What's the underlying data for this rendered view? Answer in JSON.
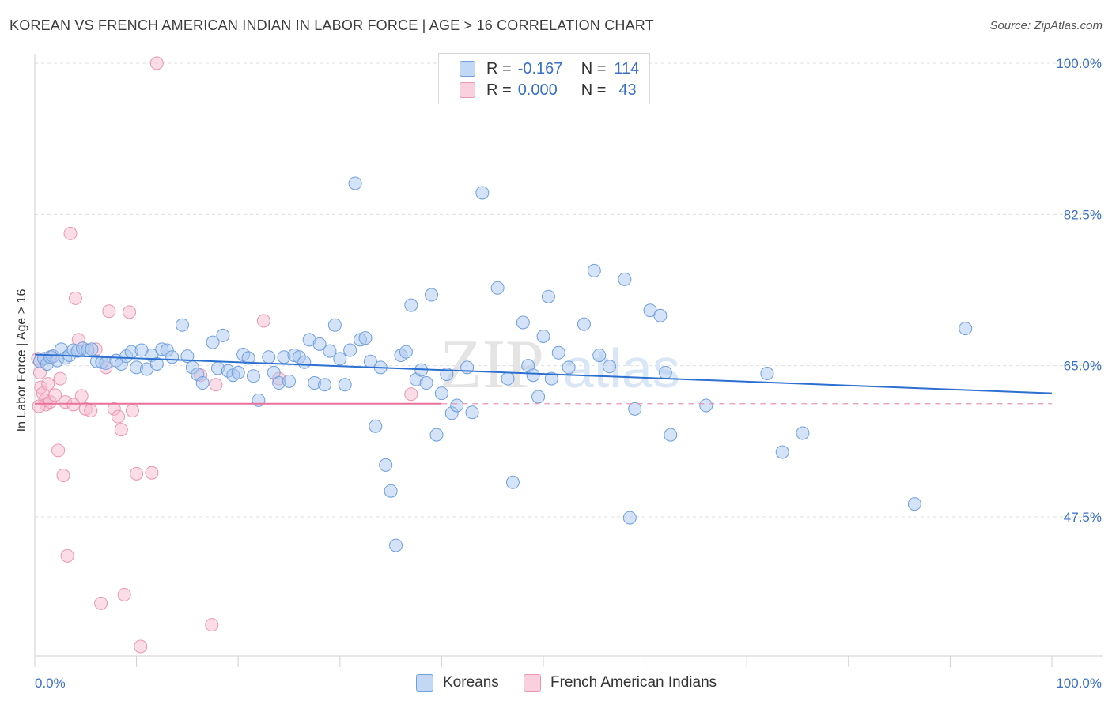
{
  "header": {
    "title": "KOREAN VS FRENCH AMERICAN INDIAN IN LABOR FORCE | AGE > 16 CORRELATION CHART",
    "source": "Source: ZipAtlas.com"
  },
  "legend_top": {
    "rows": [
      {
        "r_label": "R =",
        "r_value": "-0.167",
        "n_label": "N =",
        "n_value": "114"
      },
      {
        "r_label": "R =",
        "r_value": "0.000",
        "n_label": "N =",
        "n_value": "43"
      }
    ]
  },
  "legend_bottom": {
    "items": [
      {
        "label": "Koreans"
      },
      {
        "label": "French American Indians"
      }
    ]
  },
  "watermark": {
    "zip": "ZIP",
    "atlas": "atlas"
  },
  "colors": {
    "blue_fill": "#a9c8f0",
    "blue_stroke": "#6f9fdc",
    "blue_line": "#2b6fd1",
    "pink_fill": "#f7bcd0",
    "pink_stroke": "#e896b2",
    "pink_line": "#e8709a",
    "tick_text": "#3a70c6"
  },
  "chart_data": {
    "type": "scatter",
    "title": "KOREAN VS FRENCH AMERICAN INDIAN IN LABOR FORCE | AGE > 16 CORRELATION CHART",
    "xlabel": "",
    "ylabel": "In Labor Force | Age > 16",
    "xlim": [
      0,
      100
    ],
    "ylim": [
      32,
      102
    ],
    "x_tick_labels": [
      "0.0%",
      "100.0%"
    ],
    "y_ticks": [
      47.5,
      65.0,
      82.5,
      100.0
    ],
    "y_tick_labels": [
      "47.5%",
      "65.0%",
      "82.5%",
      "100.0%"
    ],
    "grid": true,
    "legend_position": "top-center",
    "series": [
      {
        "name": "Koreans",
        "r": -0.167,
        "n": 114,
        "trend": {
          "x": [
            0,
            100
          ],
          "y": [
            66.3,
            61.8
          ]
        },
        "points": [
          [
            0.5,
            65.5
          ],
          [
            0.9,
            65.8
          ],
          [
            1.2,
            65.2
          ],
          [
            1.5,
            66.0
          ],
          [
            1.8,
            66.1
          ],
          [
            2.2,
            65.6
          ],
          [
            2.6,
            66.9
          ],
          [
            3.0,
            65.9
          ],
          [
            3.4,
            66.2
          ],
          [
            3.8,
            66.8
          ],
          [
            4.2,
            66.7
          ],
          [
            4.7,
            67.0
          ],
          [
            5.2,
            66.8
          ],
          [
            5.6,
            66.9
          ],
          [
            6.1,
            65.5
          ],
          [
            6.6,
            65.4
          ],
          [
            7.0,
            65.3
          ],
          [
            8.0,
            65.6
          ],
          [
            8.5,
            65.2
          ],
          [
            9.0,
            66.1
          ],
          [
            9.5,
            66.6
          ],
          [
            10.0,
            64.8
          ],
          [
            10.5,
            66.8
          ],
          [
            11.0,
            64.6
          ],
          [
            11.5,
            66.2
          ],
          [
            12.0,
            65.2
          ],
          [
            12.5,
            66.9
          ],
          [
            13.0,
            66.8
          ],
          [
            13.5,
            66.0
          ],
          [
            14.5,
            69.7
          ],
          [
            15.0,
            66.1
          ],
          [
            15.5,
            64.8
          ],
          [
            16.0,
            64.0
          ],
          [
            16.5,
            63.0
          ],
          [
            17.5,
            67.7
          ],
          [
            18.0,
            64.7
          ],
          [
            18.5,
            68.5
          ],
          [
            19.0,
            64.4
          ],
          [
            19.5,
            63.9
          ],
          [
            20.0,
            64.2
          ],
          [
            20.5,
            66.3
          ],
          [
            21.0,
            65.9
          ],
          [
            21.5,
            63.8
          ],
          [
            22.0,
            61.0
          ],
          [
            23.0,
            66.0
          ],
          [
            23.5,
            64.2
          ],
          [
            24.0,
            63.0
          ],
          [
            24.5,
            66.0
          ],
          [
            25.0,
            63.2
          ],
          [
            25.5,
            66.2
          ],
          [
            26.0,
            66.0
          ],
          [
            26.5,
            65.4
          ],
          [
            27.0,
            68.0
          ],
          [
            27.5,
            63.0
          ],
          [
            28.0,
            67.5
          ],
          [
            28.5,
            62.8
          ],
          [
            29.0,
            66.7
          ],
          [
            29.5,
            69.7
          ],
          [
            30.0,
            65.8
          ],
          [
            30.5,
            62.8
          ],
          [
            31.0,
            66.8
          ],
          [
            31.5,
            86.1
          ],
          [
            32.0,
            68.0
          ],
          [
            32.5,
            68.2
          ],
          [
            33.0,
            65.5
          ],
          [
            33.5,
            58.0
          ],
          [
            34.0,
            64.8
          ],
          [
            34.5,
            53.5
          ],
          [
            35.0,
            50.5
          ],
          [
            35.5,
            44.2
          ],
          [
            36.0,
            66.2
          ],
          [
            36.5,
            66.6
          ],
          [
            37.0,
            72.0
          ],
          [
            37.5,
            63.4
          ],
          [
            38.0,
            64.5
          ],
          [
            38.5,
            63.0
          ],
          [
            39.0,
            73.2
          ],
          [
            39.5,
            57.0
          ],
          [
            40.0,
            61.8
          ],
          [
            40.5,
            64.0
          ],
          [
            41.0,
            59.5
          ],
          [
            41.5,
            60.4
          ],
          [
            42.5,
            64.8
          ],
          [
            43.0,
            59.6
          ],
          [
            44.0,
            85.0
          ],
          [
            45.5,
            74.0
          ],
          [
            46.5,
            63.5
          ],
          [
            47.0,
            51.5
          ],
          [
            48.0,
            70.0
          ],
          [
            48.5,
            65.0
          ],
          [
            49.0,
            63.9
          ],
          [
            49.5,
            61.4
          ],
          [
            50.0,
            68.4
          ],
          [
            50.5,
            73.0
          ],
          [
            50.8,
            63.5
          ],
          [
            51.5,
            66.5
          ],
          [
            52.5,
            64.8
          ],
          [
            54.0,
            69.8
          ],
          [
            55.0,
            76.0
          ],
          [
            55.5,
            66.2
          ],
          [
            56.5,
            64.9
          ],
          [
            58.0,
            75.0
          ],
          [
            58.5,
            47.4
          ],
          [
            59.0,
            60.0
          ],
          [
            60.5,
            71.4
          ],
          [
            61.5,
            70.8
          ],
          [
            62.0,
            64.2
          ],
          [
            62.5,
            57.0
          ],
          [
            66.0,
            60.4
          ],
          [
            72.0,
            64.1
          ],
          [
            73.5,
            55.0
          ],
          [
            75.5,
            57.2
          ],
          [
            86.5,
            49.0
          ],
          [
            91.5,
            69.3
          ]
        ]
      },
      {
        "name": "French American Indians",
        "r": 0.0,
        "n": 43,
        "trend": {
          "x": [
            0,
            40
          ],
          "y": [
            60.6,
            60.6
          ]
        },
        "trend_dashed_to": 100,
        "points": [
          [
            0.3,
            65.8
          ],
          [
            0.5,
            64.2
          ],
          [
            0.6,
            62.5
          ],
          [
            0.8,
            61.8
          ],
          [
            1.0,
            61.0
          ],
          [
            1.1,
            60.5
          ],
          [
            1.3,
            62.9
          ],
          [
            1.5,
            60.8
          ],
          [
            1.7,
            66.0
          ],
          [
            2.0,
            61.6
          ],
          [
            2.3,
            55.2
          ],
          [
            2.5,
            63.5
          ],
          [
            2.8,
            52.3
          ],
          [
            3.0,
            60.8
          ],
          [
            3.2,
            43.0
          ],
          [
            3.5,
            80.3
          ],
          [
            3.8,
            60.5
          ],
          [
            4.0,
            72.8
          ],
          [
            4.3,
            68.0
          ],
          [
            4.6,
            61.5
          ],
          [
            5.0,
            60.0
          ],
          [
            5.5,
            59.8
          ],
          [
            6.0,
            66.9
          ],
          [
            6.5,
            37.5
          ],
          [
            7.0,
            64.8
          ],
          [
            7.3,
            71.3
          ],
          [
            7.8,
            60.0
          ],
          [
            8.2,
            59.1
          ],
          [
            8.5,
            57.6
          ],
          [
            8.8,
            38.5
          ],
          [
            9.3,
            71.2
          ],
          [
            9.6,
            59.8
          ],
          [
            10.0,
            52.5
          ],
          [
            10.4,
            32.5
          ],
          [
            11.5,
            52.6
          ],
          [
            12.0,
            100.0
          ],
          [
            16.3,
            63.9
          ],
          [
            17.4,
            35.0
          ],
          [
            17.8,
            62.8
          ],
          [
            22.5,
            70.2
          ],
          [
            24.0,
            63.5
          ],
          [
            37.0,
            61.7
          ],
          [
            0.4,
            60.3
          ]
        ]
      }
    ]
  }
}
